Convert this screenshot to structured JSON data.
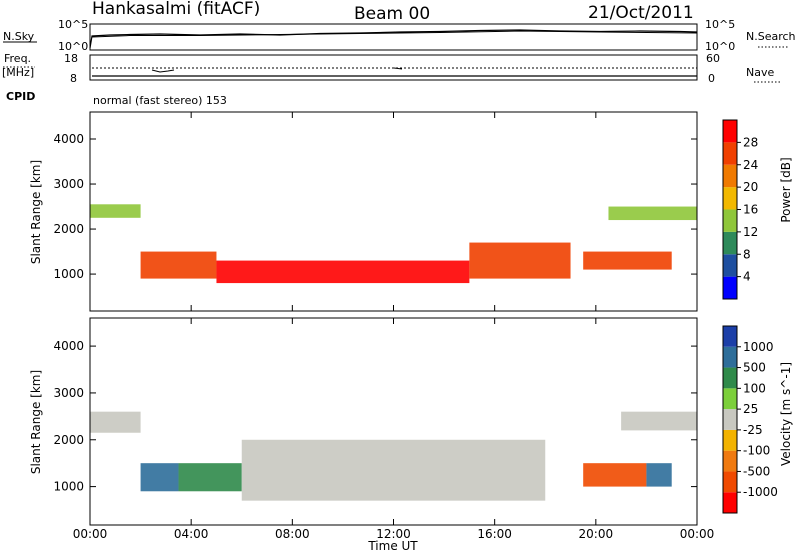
{
  "header": {
    "station": "Hankasalmi (fitACF)",
    "beam": "Beam 00",
    "date": "21/Oct/2011"
  },
  "strips": {
    "nsky_label": "N.Sky",
    "nsearch_label": "N.Search",
    "freq_label_1": "Freq.",
    "freq_label_2": "[MHz]",
    "nave_label": "Nave",
    "cpid_label": "CPID",
    "cpid_text": "normal (fast stereo) 153",
    "noise_left_ticks": [
      "10^5",
      "10^0"
    ],
    "noise_right_ticks": [
      "10^5",
      "10^0"
    ],
    "freq_left_ticks": [
      "18",
      "8"
    ],
    "freq_right_ticks": [
      "60",
      "0"
    ]
  },
  "chart_data": [
    {
      "type": "heatmap",
      "panel": "power",
      "ylabel": "Slant Range [km]",
      "ylim": [
        180,
        4600
      ],
      "yticks": [
        1000,
        2000,
        3000,
        4000
      ],
      "xlabel": "",
      "xlim": [
        0,
        24
      ],
      "colorbar": {
        "label": "Power [dB]",
        "range": [
          0,
          32
        ],
        "ticks": [
          "28",
          "24",
          "20",
          "16",
          "12",
          "8",
          "4"
        ],
        "colors": [
          "#0000ff",
          "#1e4fa0",
          "#2e8a5a",
          "#8fc63a",
          "#f2b800",
          "#f07a00",
          "#f04000",
          "#ff0000"
        ]
      },
      "bands": [
        {
          "t0": 0.0,
          "t1": 2.0,
          "r0": 2250,
          "r1": 2550,
          "value": 14
        },
        {
          "t0": 2.0,
          "t1": 5.0,
          "r0": 900,
          "r1": 1500,
          "value": 26
        },
        {
          "t0": 5.0,
          "t1": 15.0,
          "r0": 800,
          "r1": 1300,
          "value": 28
        },
        {
          "t0": 15.0,
          "t1": 19.0,
          "r0": 900,
          "r1": 1700,
          "value": 24
        },
        {
          "t0": 19.5,
          "t1": 23.0,
          "r0": 1100,
          "r1": 1500,
          "value": 25
        },
        {
          "t0": 20.5,
          "t1": 24.0,
          "r0": 2200,
          "r1": 2500,
          "value": 14
        }
      ]
    },
    {
      "type": "heatmap",
      "panel": "velocity",
      "ylabel": "Slant Range [km]",
      "ylim": [
        180,
        4600
      ],
      "yticks": [
        1000,
        2000,
        3000,
        4000
      ],
      "xlabel": "Time UT",
      "xlim": [
        0,
        24
      ],
      "xticks": [
        "00:00",
        "04:00",
        "08:00",
        "12:00",
        "16:00",
        "20:00",
        "00:00"
      ],
      "colorbar": {
        "label": "Velocity [m s^-1]",
        "ticks": [
          "1000",
          "500",
          "100",
          "25",
          "-25",
          "-100",
          "-500",
          "-1000"
        ],
        "colors": [
          "#1c3fa8",
          "#2e6e9a",
          "#2f8a4a",
          "#7ccf3a",
          "#c8c8c0",
          "#f3b300",
          "#f07a10",
          "#f04a00",
          "#ff0000"
        ]
      },
      "bands": [
        {
          "t0": 0.0,
          "t1": 2.0,
          "r0": 2150,
          "r1": 2600,
          "value": 0
        },
        {
          "t0": 2.0,
          "t1": 3.5,
          "r0": 900,
          "r1": 1500,
          "value": 500
        },
        {
          "t0": 3.5,
          "t1": 6.0,
          "r0": 900,
          "r1": 1500,
          "value": 100
        },
        {
          "t0": 6.0,
          "t1": 18.0,
          "r0": 700,
          "r1": 2000,
          "value": 0
        },
        {
          "t0": 19.5,
          "t1": 22.0,
          "r0": 1000,
          "r1": 1500,
          "value": -500
        },
        {
          "t0": 22.0,
          "t1": 23.0,
          "r0": 1000,
          "r1": 1500,
          "value": 500
        },
        {
          "t0": 21.0,
          "t1": 24.0,
          "r0": 2200,
          "r1": 2600,
          "value": 0
        }
      ]
    }
  ]
}
